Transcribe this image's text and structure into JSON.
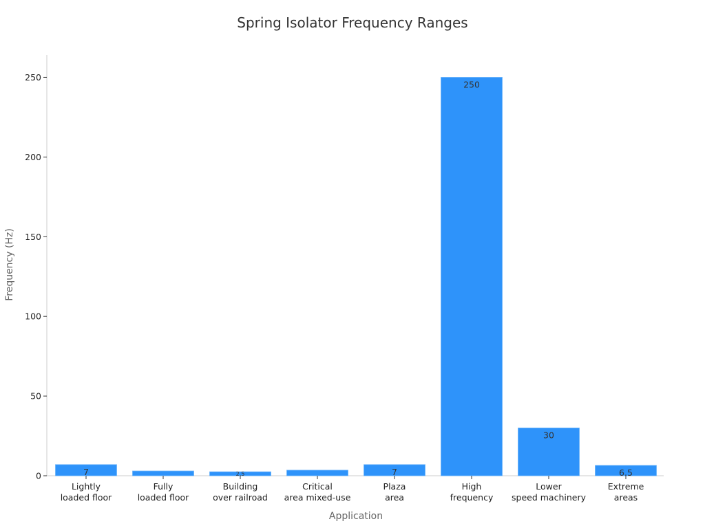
{
  "chart_data": {
    "type": "bar",
    "title": "Spring Isolator Frequency Ranges",
    "xlabel": "Application",
    "ylabel": "Frequency (Hz)",
    "categories": [
      [
        "Lightly",
        "loaded floor"
      ],
      [
        "Fully",
        "loaded floor"
      ],
      [
        "Building",
        "over railroad"
      ],
      [
        "Critical",
        "area mixed-use"
      ],
      [
        "Plaza",
        "area"
      ],
      [
        "High",
        "frequency"
      ],
      [
        "Lower",
        "speed machinery"
      ],
      [
        "Extreme",
        "areas"
      ]
    ],
    "values": [
      7,
      3,
      2.5,
      3.5,
      7,
      250,
      30,
      6.5
    ],
    "data_labels": [
      "7",
      "",
      "2.5",
      "",
      "7",
      "250",
      "30",
      "6.5"
    ],
    "ylim": [
      0,
      264
    ],
    "yticks": [
      0,
      50,
      100,
      150,
      200,
      250
    ],
    "grid": false,
    "legend": "none",
    "colors": {
      "bar": "#2e93fa",
      "bar_edge": "#6bb4fb"
    }
  }
}
